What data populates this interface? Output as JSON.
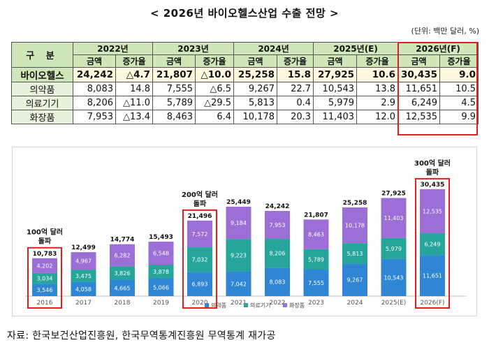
{
  "title": "< 2026년 바이오헬스산업 수출 전망 >",
  "unit": "(단위: 백만 달러, %)",
  "table": {
    "corner": "구 분",
    "years": [
      "2022년",
      "2023년",
      "2024년",
      "2025년(E)",
      "2026년(F)"
    ],
    "sub_amount": "금액",
    "sub_growth": "증가율",
    "rows": [
      {
        "label": "바이오헬스",
        "cells": [
          "24,242",
          "△4.7",
          "21,807",
          "△10.0",
          "25,258",
          "15.8",
          "27,925",
          "10.6",
          "30,435",
          "9.0"
        ]
      },
      {
        "label": "의약품",
        "cells": [
          "8,083",
          "14.8",
          "7,555",
          "△6.5",
          "9,267",
          "22.7",
          "10,543",
          "13.8",
          "11,651",
          "10.5"
        ]
      },
      {
        "label": "의료기기",
        "cells": [
          "8,206",
          "△11.0",
          "5,789",
          "△29.5",
          "5,813",
          "0.4",
          "5,979",
          "2.9",
          "6,249",
          "4.5"
        ]
      },
      {
        "label": "화장품",
        "cells": [
          "7,953",
          "△13.4",
          "8,463",
          "6.4",
          "10,178",
          "20.3",
          "11,403",
          "12.0",
          "12,535",
          "9.9"
        ]
      }
    ]
  },
  "chart_data": {
    "type": "bar",
    "stacked": true,
    "categories": [
      "2016",
      "2017",
      "2018",
      "2019",
      "2020",
      "2021",
      "2022",
      "2023",
      "2024",
      "2025(E)",
      "2026(F)"
    ],
    "series": [
      {
        "name": "의약품",
        "color": "#2e86d4",
        "values": [
          3546,
          4058,
          4665,
          5066,
          6893,
          7042,
          8083,
          7555,
          9267,
          10543,
          11651
        ]
      },
      {
        "name": "의료기기",
        "color": "#26a69a",
        "values": [
          3034,
          3475,
          3826,
          3878,
          7032,
          9223,
          8206,
          5789,
          5813,
          5979,
          6249
        ]
      },
      {
        "name": "화장품",
        "color": "#9c6fd6",
        "values": [
          4202,
          4967,
          6282,
          6548,
          7572,
          9184,
          7953,
          8463,
          10178,
          11403,
          12535
        ]
      }
    ],
    "totals": [
      10783,
      12499,
      14774,
      15493,
      21496,
      25449,
      24242,
      21807,
      25258,
      27925,
      30435
    ],
    "ylim": [
      0,
      32000
    ],
    "legend": "bottom-center",
    "highlights": [
      {
        "category": "2016",
        "label_lines": [
          "100억 달러",
          "돌파"
        ]
      },
      {
        "category": "2020",
        "label_lines": [
          "200억 달러",
          "돌파"
        ]
      },
      {
        "category": "2026(F)",
        "label_lines": [
          "300억 달러",
          "돌파"
        ]
      }
    ]
  },
  "source": "자료: 한국보건산업진흥원, 한국무역통계진흥원 무역통계 재가공",
  "colors": {
    "highlight": "#e02020",
    "header_bg": "#cfe7b8"
  }
}
